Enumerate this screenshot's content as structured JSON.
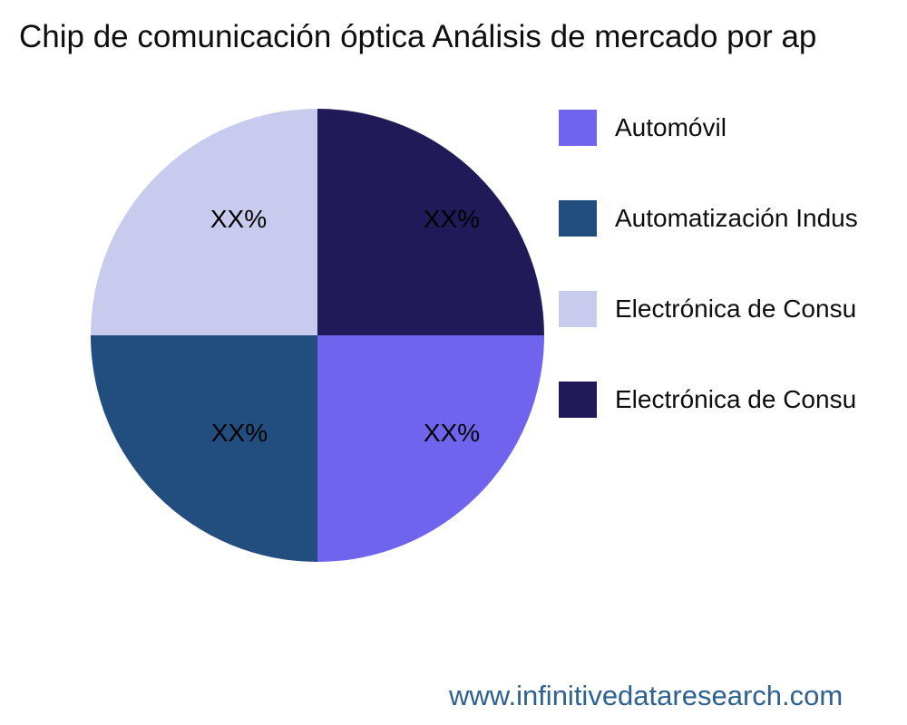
{
  "title": "Chip de comunicación óptica Análisis de mercado por ap",
  "watermark": "www.infinitivedataresearch.com",
  "colors": {
    "background": "#ffffff",
    "title_text": "#0e0e0e",
    "slice_label_text": "#000000",
    "watermark_link": "#2e6191"
  },
  "chart_data": {
    "type": "pie",
    "title": "Chip de comunicación óptica Análisis de mercado por ap",
    "start_angle_deg": 0,
    "direction": "clockwise",
    "legend_position": "right",
    "slices": [
      {
        "position": "top-right",
        "value": 25,
        "display_label": "XX%",
        "color": "#201b58"
      },
      {
        "position": "bottom-right",
        "value": 25,
        "display_label": "XX%",
        "color": "#7064ee"
      },
      {
        "position": "bottom-left",
        "value": 25,
        "display_label": "XX%",
        "color": "#214e7e"
      },
      {
        "position": "top-left",
        "value": 25,
        "display_label": "XX%",
        "color": "#c8cbee"
      }
    ],
    "legend": [
      {
        "label": "Automóvil",
        "color": "#7064ee"
      },
      {
        "label": "Automatización Indus",
        "color": "#214e7e"
      },
      {
        "label": "Electrónica de Consu",
        "color": "#c8cbee"
      },
      {
        "label": "Electrónica de Consu",
        "color": "#201b58"
      }
    ]
  }
}
